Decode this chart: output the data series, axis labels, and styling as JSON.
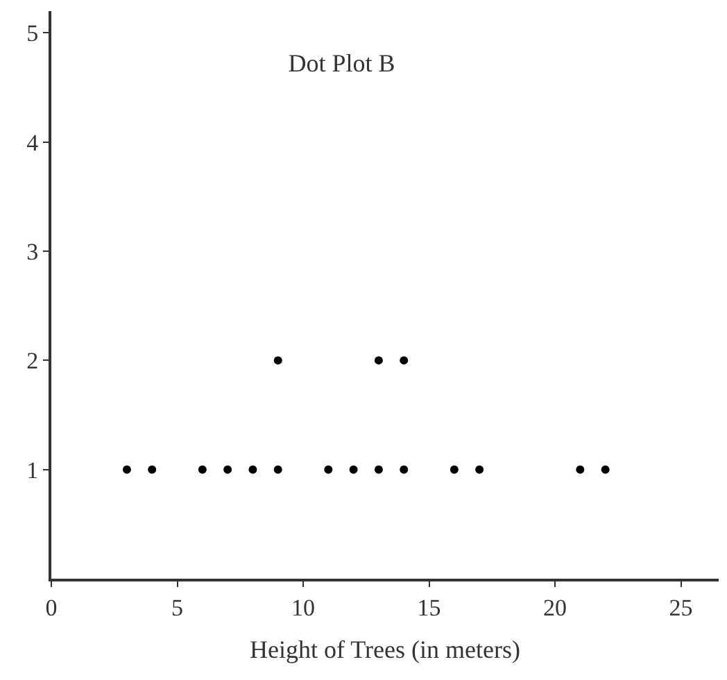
{
  "chart_data": {
    "type": "scatter",
    "title": "Dot Plot B",
    "xlabel": "Height of Trees (in meters)",
    "x": [
      3,
      4,
      6,
      7,
      8,
      9,
      11,
      12,
      13,
      14,
      16,
      17,
      21,
      22,
      9,
      13,
      14
    ],
    "series": [
      {
        "color": "#000000",
        "values": [
          1,
          1,
          1,
          1,
          1,
          1,
          1,
          1,
          1,
          1,
          1,
          1,
          1,
          1,
          2,
          2,
          2
        ]
      }
    ],
    "xlim": [
      0,
      26.5
    ],
    "xticks": [
      0,
      5,
      10,
      15,
      20,
      25
    ],
    "ylim": [
      0,
      5.2
    ],
    "yticks": [
      1,
      2,
      3,
      4,
      5
    ],
    "marker": "circle"
  }
}
